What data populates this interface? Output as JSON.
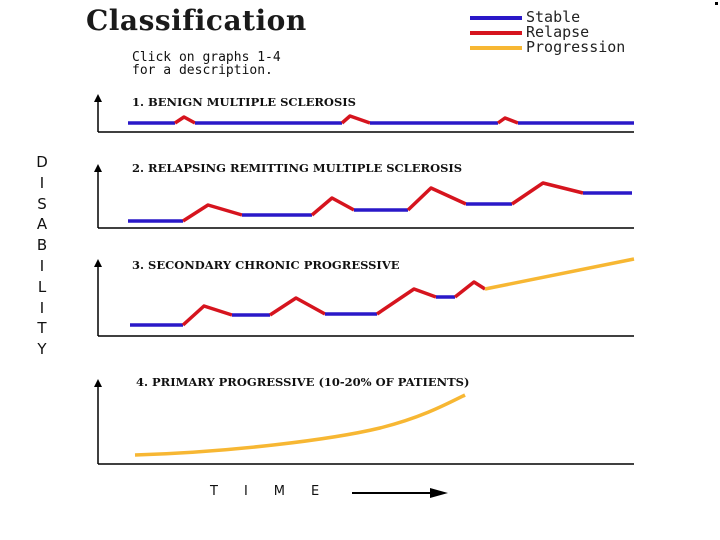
{
  "header": {
    "title": "Classification",
    "instructions": [
      "Click on graphs 1-4",
      "for a description."
    ]
  },
  "legend": [
    {
      "label": "Stable",
      "color": "#2a18c8"
    },
    {
      "label": "Relapse",
      "color": "#d6141e"
    },
    {
      "label": "Progression",
      "color": "#f7b733"
    }
  ],
  "axes": {
    "y_label": "DISABILITY",
    "x_label": "TIME"
  },
  "graphs": [
    {
      "label": "1. BENIGN MULTIPLE SCLEROSIS"
    },
    {
      "label": "2. RELAPSING REMITTING MULTIPLE SCLEROSIS"
    },
    {
      "label": "3. SECONDARY CHRONIC PROGRESSIVE"
    },
    {
      "label": "4. PRIMARY PROGRESSIVE  (10-20% OF PATIENTS)"
    }
  ]
}
